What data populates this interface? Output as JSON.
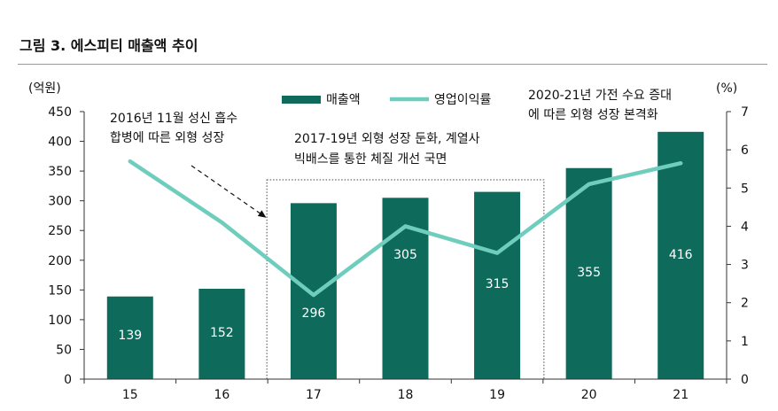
{
  "figure_title": "그림 3. 에스피티 매출액 추이",
  "chart_data": {
    "type": "bar+line",
    "categories": [
      "15",
      "16",
      "17",
      "18",
      "19",
      "20",
      "21"
    ],
    "series": [
      {
        "name": "매출액",
        "type": "bar",
        "axis": "left",
        "values": [
          139,
          152,
          296,
          305,
          315,
          355,
          416
        ]
      },
      {
        "name": "영업이익률",
        "type": "line",
        "axis": "right",
        "values": [
          5.7,
          4.1,
          2.2,
          4.0,
          3.3,
          5.1,
          5.65
        ]
      }
    ],
    "left_axis": {
      "unit": "(억원)",
      "range": [
        0,
        450
      ],
      "ticks": [
        0,
        50,
        100,
        150,
        200,
        250,
        300,
        350,
        400,
        450
      ]
    },
    "right_axis": {
      "unit": "(%)",
      "range": [
        0,
        7
      ],
      "ticks": [
        0,
        1,
        2,
        3,
        4,
        5,
        6,
        7
      ]
    },
    "legend_position": "top-center",
    "annotations": [
      {
        "lines": [
          "2016년 11월 성신 흡수",
          "합병에 따른 외형 성장"
        ]
      },
      {
        "lines": [
          "2017-19년 외형 성장 둔화, 계열사",
          "빅배스를 통한 체질 개선 국면"
        ]
      },
      {
        "lines": [
          "2020-21년 가전 수요 증대",
          "에 따른 외형 성장 본격화"
        ]
      }
    ],
    "colors": {
      "bar": "#0e6b5c",
      "line": "#6ecdbd"
    }
  }
}
